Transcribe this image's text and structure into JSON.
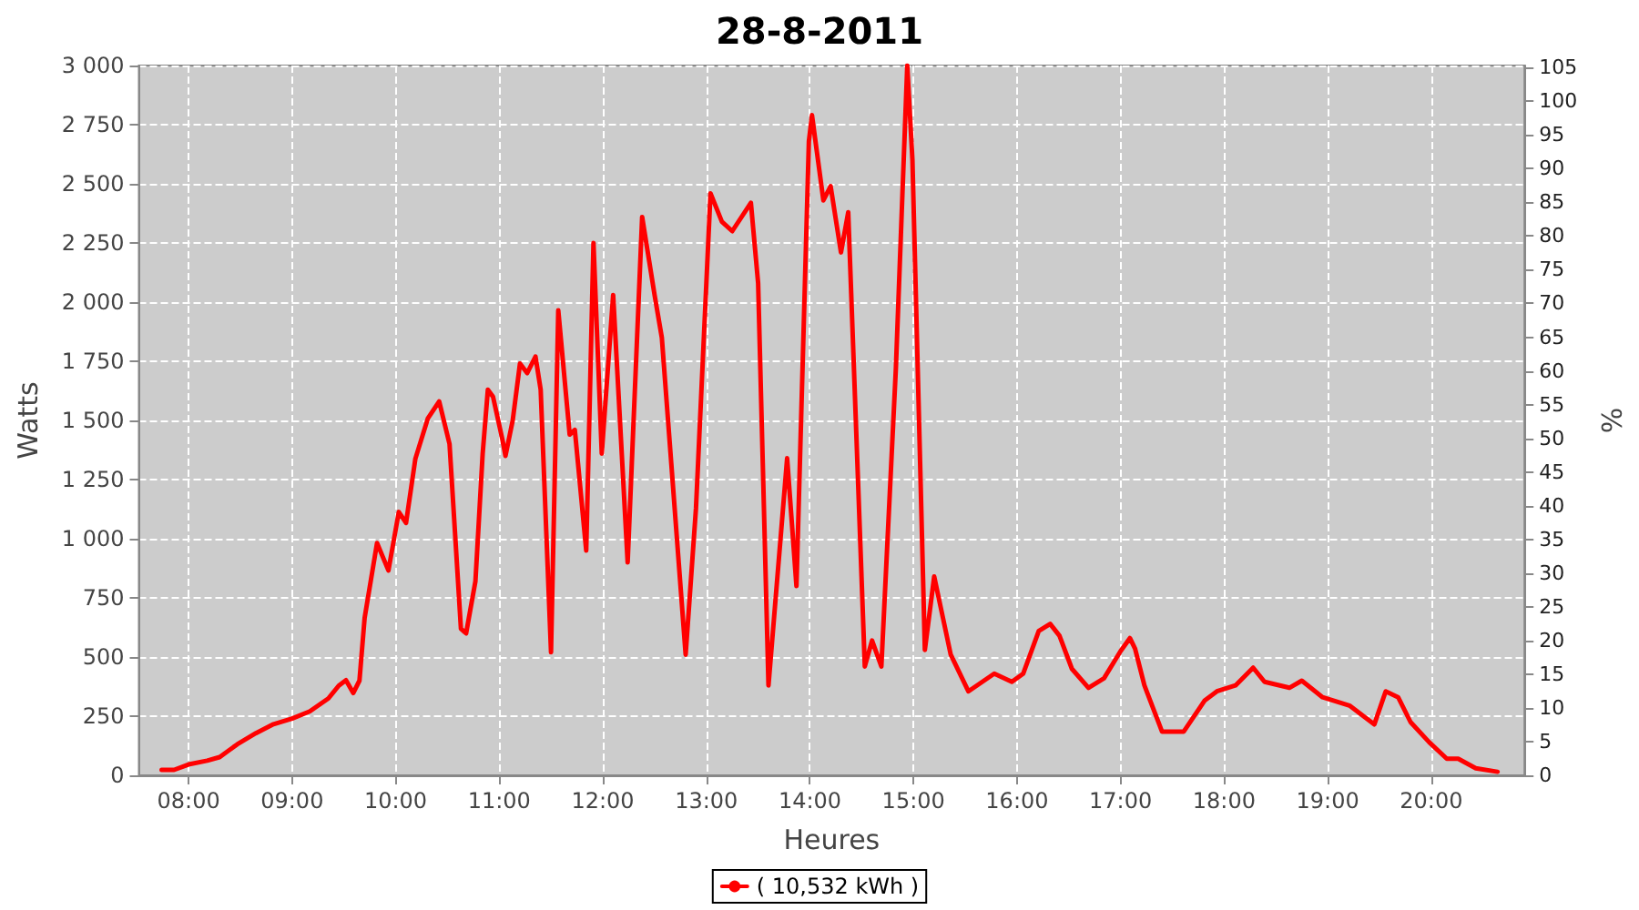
{
  "chart_data": {
    "type": "line",
    "title": "28-8-2011",
    "xlabel": "Heures",
    "ylabel": "Watts",
    "y2label": "%",
    "xlim": [
      7.52,
      20.9
    ],
    "xticks": [
      {
        "value": 8,
        "label": "08:00"
      },
      {
        "value": 9,
        "label": "09:00"
      },
      {
        "value": 10,
        "label": "10:00"
      },
      {
        "value": 11,
        "label": "11:00"
      },
      {
        "value": 12,
        "label": "12:00"
      },
      {
        "value": 13,
        "label": "13:00"
      },
      {
        "value": 14,
        "label": "14:00"
      },
      {
        "value": 15,
        "label": "15:00"
      },
      {
        "value": 16,
        "label": "16:00"
      },
      {
        "value": 17,
        "label": "17:00"
      },
      {
        "value": 18,
        "label": "18:00"
      },
      {
        "value": 19,
        "label": "19:00"
      },
      {
        "value": 20,
        "label": "20:00"
      }
    ],
    "ylim": [
      0,
      3000
    ],
    "yticks": [
      0,
      250,
      500,
      750,
      {
        "value": 1000,
        "label": "1 000"
      },
      {
        "value": 1250,
        "label": "1 250"
      },
      {
        "value": 1500,
        "label": "1 500"
      },
      {
        "value": 1750,
        "label": "1 750"
      },
      {
        "value": 2000,
        "label": "2 000"
      },
      {
        "value": 2250,
        "label": "2 250"
      },
      {
        "value": 2500,
        "label": "2 500"
      },
      {
        "value": 2750,
        "label": "2 750"
      },
      {
        "value": 3000,
        "label": "3 000"
      }
    ],
    "y2lim": [
      0,
      105.3
    ],
    "y2ticks": [
      0,
      5,
      10,
      15,
      20,
      25,
      30,
      35,
      40,
      45,
      50,
      55,
      60,
      65,
      70,
      75,
      80,
      85,
      90,
      95,
      100,
      105
    ],
    "grid": true,
    "legend": "bottom",
    "marker": "none",
    "line_style": "solid",
    "series": [
      {
        "name": "( 10,532 kWh )",
        "color": "#ff0000",
        "x": [
          7.74,
          7.86,
          8.0,
          8.18,
          8.3,
          8.47,
          8.65,
          8.82,
          9.0,
          9.17,
          9.35,
          9.45,
          9.52,
          9.59,
          9.65,
          9.7,
          9.82,
          9.93,
          10.03,
          10.1,
          10.19,
          10.31,
          10.42,
          10.52,
          10.63,
          10.68,
          10.77,
          10.84,
          10.89,
          10.94,
          11.03,
          11.06,
          11.13,
          11.2,
          11.27,
          11.35,
          11.4,
          11.5,
          11.57,
          11.68,
          11.73,
          11.84,
          11.91,
          11.99,
          12.1,
          12.24,
          12.38,
          12.5,
          12.57,
          12.8,
          12.9,
          13.04,
          13.15,
          13.25,
          13.43,
          13.5,
          13.6,
          13.78,
          13.87,
          13.99,
          14.02,
          14.13,
          14.2,
          14.3,
          14.37,
          14.53,
          14.6,
          14.69,
          14.83,
          14.94,
          14.99,
          15.11,
          15.2,
          15.36,
          15.53,
          15.78,
          15.95,
          16.06,
          16.21,
          16.32,
          16.41,
          16.53,
          16.69,
          16.84,
          17.0,
          17.09,
          17.14,
          17.23,
          17.4,
          17.61,
          17.81,
          17.93,
          18.11,
          18.28,
          18.39,
          18.63,
          18.75,
          18.95,
          19.21,
          19.45,
          19.56,
          19.68,
          19.8,
          19.98,
          20.15,
          20.26,
          20.43,
          20.64
        ],
        "values": [
          23,
          23,
          46,
          62,
          77,
          131,
          178,
          216,
          240,
          270,
          325,
          379,
          402,
          348,
          400,
          665,
          982,
          866,
          1113,
          1067,
          1338,
          1508,
          1580,
          1400,
          620,
          600,
          820,
          1360,
          1630,
          1600,
          1420,
          1350,
          1500,
          1740,
          1700,
          1770,
          1630,
          520,
          1965,
          1440,
          1460,
          950,
          2250,
          1360,
          2030,
          900,
          2360,
          2030,
          1850,
          510,
          1130,
          2460,
          2340,
          2300,
          2420,
          2080,
          380,
          1340,
          800,
          2680,
          2790,
          2430,
          2490,
          2210,
          2380,
          460,
          570,
          460,
          1720,
          3000,
          2600,
          530,
          840,
          510,
          355,
          430,
          395,
          430,
          610,
          640,
          590,
          450,
          370,
          410,
          525,
          580,
          535,
          380,
          185,
          185,
          315,
          355,
          380,
          455,
          395,
          370,
          400,
          330,
          295,
          215,
          355,
          330,
          225,
          140,
          70,
          70,
          30,
          15
        ]
      }
    ]
  }
}
